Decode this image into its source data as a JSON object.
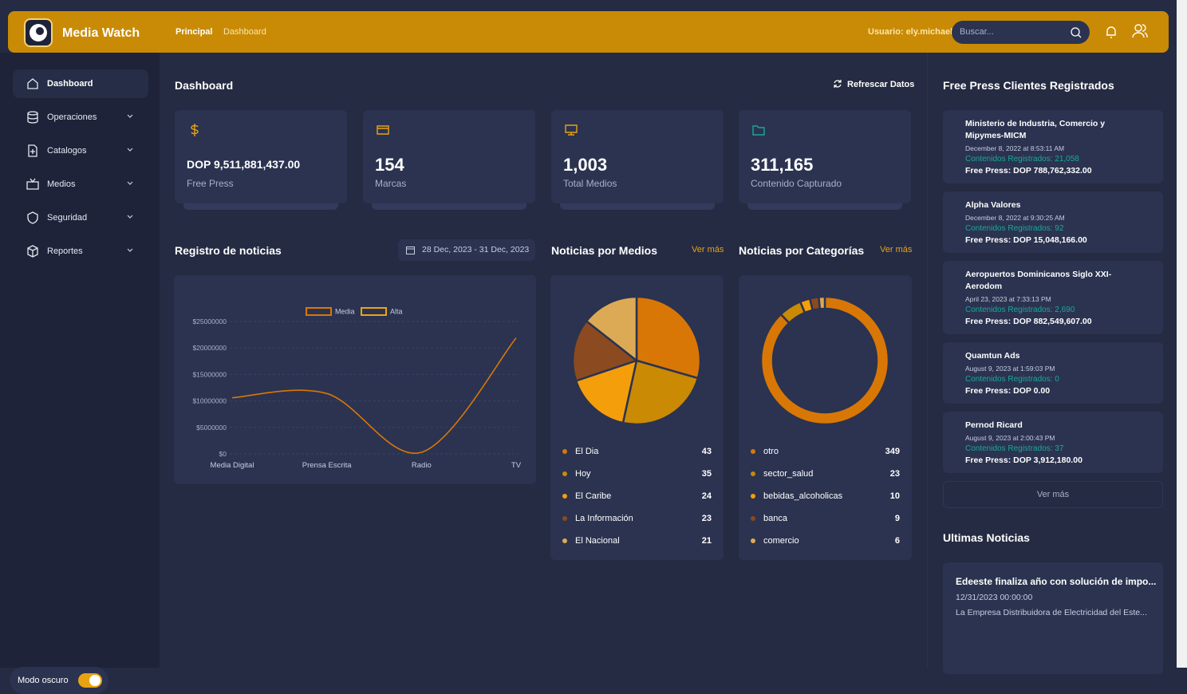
{
  "header": {
    "brand": "Media Watch",
    "nav": [
      "Principal",
      "Dashboard"
    ],
    "user": "Usuario: ely.michael",
    "search_placeholder": "Buscar..."
  },
  "sidebar": {
    "items": [
      "Dashboard",
      "Operaciones",
      "Catalogos",
      "Medios",
      "Seguridad",
      "Reportes"
    ],
    "dark_mode": "Modo oscuro"
  },
  "main": {
    "title": "Dashboard",
    "refresh": "Refrescar Datos",
    "stats": [
      {
        "value": "DOP 9,511,881,437.00",
        "label": "Free Press"
      },
      {
        "value": "154",
        "label": "Marcas"
      },
      {
        "value": "1,003",
        "label": "Total Medios"
      },
      {
        "value": "311,165",
        "label": "Contenido Capturado"
      }
    ]
  },
  "chart_data": [
    {
      "type": "line",
      "title": "Registro de noticias",
      "date_range": "28 Dec, 2023 - 31 Dec, 2023",
      "categories": [
        "Media Digital",
        "Prensa Escrita",
        "Radio",
        "TV"
      ],
      "series": [
        {
          "name": "Media",
          "color": "#d97706",
          "values": [
            10600000,
            11400000,
            300000,
            21900000
          ]
        },
        {
          "name": "Alta",
          "color": "#eaa512",
          "values": [
            null,
            null,
            null,
            null
          ]
        }
      ],
      "ylim": [
        0,
        25000000
      ],
      "yticks": [
        {
          "value": 0,
          "label": "$0"
        },
        {
          "value": 5000000,
          "label": "$5000000"
        },
        {
          "value": 10000000,
          "label": "$10000000"
        },
        {
          "value": 15000000,
          "label": "$15000000"
        },
        {
          "value": 20000000,
          "label": "$20000000"
        },
        {
          "value": 25000000,
          "label": "$25000000"
        }
      ],
      "grid": true
    },
    {
      "type": "pie",
      "title": "Noticias por Medios",
      "link": "Ver más",
      "categories": [
        "El Dia",
        "Hoy",
        "El Caribe",
        "La Información",
        "El Nacional"
      ],
      "values": [
        43,
        35,
        24,
        23,
        21
      ],
      "colors": [
        "#d97706",
        "#ca8a04",
        "#f59e0b",
        "#8b4a1f",
        "#dcaa55"
      ]
    },
    {
      "type": "donut",
      "title": "Noticias por Categorías",
      "link": "Ver más",
      "categories": [
        "otro",
        "sector_salud",
        "bebidas_alcoholicas",
        "banca",
        "comercio"
      ],
      "values": [
        349,
        23,
        10,
        9,
        6
      ],
      "colors": [
        "#d97706",
        "#ca8a04",
        "#f59e0b",
        "#8b4a1f",
        "#dcaa55"
      ]
    }
  ],
  "clients": {
    "title": "Free Press Clientes Registrados",
    "more": "Ver más",
    "items": [
      {
        "name": "Ministerio de Industria, Comercio y Mipymes-MICM",
        "date": "December 8, 2022 at 8:53:11 AM",
        "contents": "Contenidos Registrados: 21,058",
        "free_press": "Free Press: DOP 788,762,332.00"
      },
      {
        "name": "Alpha Valores",
        "date": "December 8, 2022 at 9:30:25 AM",
        "contents": "Contenidos Registrados: 92",
        "free_press": "Free Press: DOP 15,048,166.00"
      },
      {
        "name": "Aeropuertos Dominicanos Siglo XXI-Aerodom",
        "date": "April 23, 2023 at 7:33:13 PM",
        "contents": "Contenidos Registrados: 2,690",
        "free_press": "Free Press: DOP 882,549,607.00"
      },
      {
        "name": "Quamtun Ads",
        "date": "August 9, 2023 at 1:59:03 PM",
        "contents": "Contenidos Registrados: 0",
        "free_press": "Free Press: DOP 0.00"
      },
      {
        "name": "Pernod Ricard",
        "date": "August 9, 2023 at 2:00:43 PM",
        "contents": "Contenidos Registrados: 37",
        "free_press": "Free Press: DOP 3,912,180.00"
      }
    ]
  },
  "news": {
    "title": "Ultimas Noticias",
    "items": [
      {
        "title": "Edeeste finaliza año con solución de impo...",
        "date": "12/31/2023 00:00:00",
        "summary": "La Empresa Distribuidora de Electricidad del Este..."
      }
    ]
  }
}
